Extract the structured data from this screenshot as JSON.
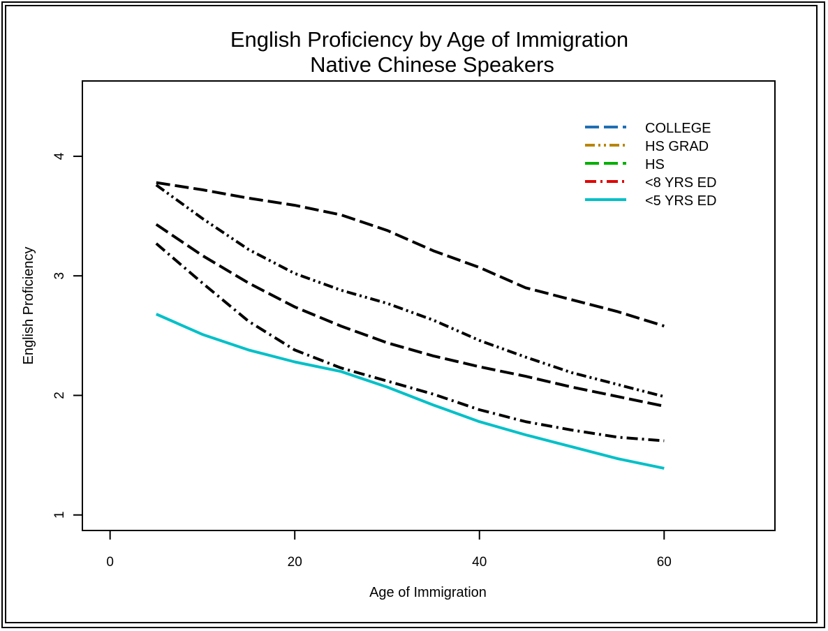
{
  "chart_data": {
    "type": "line",
    "title": "English Proficiency by Age of Immigration",
    "subtitle": "Native Chinese Speakers",
    "xlabel": "Age of Immigration",
    "ylabel": "English Proficiency",
    "xlim": [
      -3,
      72
    ],
    "ylim": [
      0.87,
      4.63
    ],
    "x_ticks": [
      0,
      20,
      40,
      60
    ],
    "y_ticks": [
      1,
      2,
      3,
      4
    ],
    "x_tick_labels": [
      "0",
      "20",
      "40",
      "60"
    ],
    "y_tick_labels": [
      "1",
      "2",
      "3",
      "4"
    ],
    "grid": false,
    "legend_position": "top-right",
    "series": [
      {
        "name": "COLLEGE",
        "color": "#1f6fb4",
        "legend_dash": "long-dash",
        "x": [
          5,
          10,
          15,
          20,
          25,
          30,
          35,
          40,
          45,
          50,
          55,
          60
        ],
        "y": [
          3.78,
          3.72,
          3.65,
          3.59,
          3.51,
          3.38,
          3.21,
          3.07,
          2.9,
          2.8,
          2.7,
          2.58
        ]
      },
      {
        "name": "HS GRAD",
        "color": "#b8860b",
        "legend_dash": "dash-dot-dot",
        "x": [
          5,
          10,
          15,
          20,
          25,
          30,
          35,
          40,
          45,
          50,
          55,
          60
        ],
        "y": [
          3.76,
          3.48,
          3.22,
          3.02,
          2.88,
          2.77,
          2.63,
          2.46,
          2.32,
          2.19,
          2.09,
          1.99
        ]
      },
      {
        "name": "HS",
        "color": "#00b000",
        "legend_dash": "long-dash",
        "x": [
          5,
          10,
          15,
          20,
          25,
          30,
          35,
          40,
          45,
          50,
          55,
          60
        ],
        "y": [
          3.43,
          3.17,
          2.94,
          2.74,
          2.58,
          2.44,
          2.33,
          2.24,
          2.16,
          2.07,
          1.99,
          1.91
        ]
      },
      {
        "name": "<8 YRS ED",
        "color": "#e00000",
        "legend_dash": "dash-dot",
        "x": [
          5,
          10,
          15,
          20,
          25,
          30,
          35,
          40,
          45,
          50,
          55,
          60
        ],
        "y": [
          3.27,
          2.94,
          2.62,
          2.38,
          2.23,
          2.12,
          2.01,
          1.88,
          1.78,
          1.71,
          1.65,
          1.62
        ]
      },
      {
        "name": "<5 YRS ED",
        "color": "#00c0c8",
        "legend_dash": "solid",
        "x": [
          5,
          10,
          15,
          20,
          25,
          30,
          35,
          40,
          45,
          50,
          55,
          60
        ],
        "y": [
          2.68,
          2.51,
          2.38,
          2.28,
          2.2,
          2.07,
          1.92,
          1.78,
          1.67,
          1.57,
          1.47,
          1.39
        ]
      }
    ]
  }
}
